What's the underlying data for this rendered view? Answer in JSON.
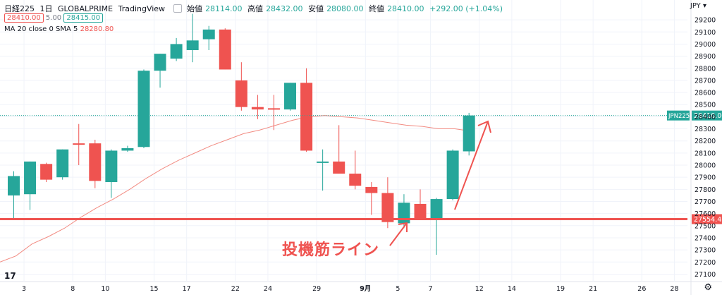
{
  "legend": {
    "symbol": "日経225",
    "interval": "1日",
    "broker": "GLOBALPRIME",
    "platform": "TradingView",
    "open_label": "始値",
    "open": "28114.00",
    "high_label": "高値",
    "high": "28432.00",
    "low_label": "安値",
    "low": "28080.00",
    "close_label": "終値",
    "close": "28410.00",
    "change": "+292.00 (+1.04%)",
    "bid": "28410.00",
    "spread": "5.00",
    "ask": "28415.00"
  },
  "indicator": {
    "label": "MA 20 close 0 SMA 5",
    "value": "28280.80"
  },
  "currency": "JPY",
  "tv_logo": "17",
  "annotation": "投機筋ライン",
  "colors": {
    "up": "#26a69a",
    "down": "#ef5350",
    "ma": "#f28b82",
    "support": "#ef5350",
    "current_line": "#26a69a"
  },
  "chart_data": {
    "type": "candlestick",
    "y_ticks": [
      27100,
      27200,
      27300,
      27400,
      27500,
      27600,
      27700,
      27800,
      27900,
      28000,
      28100,
      28200,
      28300,
      28400,
      28500,
      28600,
      28700,
      28800,
      28900,
      29000,
      29100,
      29200
    ],
    "x_ticks": [
      "3",
      "8",
      "10",
      "15",
      "17",
      "22",
      "24",
      "29",
      "9月",
      "5",
      "7",
      "12",
      "14",
      "19",
      "21",
      "26",
      "28"
    ],
    "candles": [
      {
        "o": 27750,
        "h": 27950,
        "l": 27550,
        "c": 27910
      },
      {
        "o": 27760,
        "h": 28030,
        "l": 27630,
        "c": 28030
      },
      {
        "o": 28010,
        "h": 28020,
        "l": 27860,
        "c": 27880
      },
      {
        "o": 27900,
        "h": 28130,
        "l": 27880,
        "c": 28130
      },
      {
        "o": 28180,
        "h": 28340,
        "l": 28000,
        "c": 28170
      },
      {
        "o": 28180,
        "h": 28210,
        "l": 27810,
        "c": 27870
      },
      {
        "o": 27860,
        "h": 28130,
        "l": 27730,
        "c": 28120
      },
      {
        "o": 28120,
        "h": 28160,
        "l": 28110,
        "c": 28140
      },
      {
        "o": 28150,
        "h": 28790,
        "l": 28140,
        "c": 28780
      },
      {
        "o": 28780,
        "h": 28920,
        "l": 28640,
        "c": 28920
      },
      {
        "o": 28880,
        "h": 29050,
        "l": 28860,
        "c": 29000
      },
      {
        "o": 28950,
        "h": 29250,
        "l": 28850,
        "c": 29030
      },
      {
        "o": 29040,
        "h": 29150,
        "l": 28950,
        "c": 29120
      },
      {
        "o": 29120,
        "h": 29130,
        "l": 28790,
        "c": 28790
      },
      {
        "o": 28700,
        "h": 28850,
        "l": 28450,
        "c": 28480
      },
      {
        "o": 28480,
        "h": 28580,
        "l": 28380,
        "c": 28460
      },
      {
        "o": 28470,
        "h": 28580,
        "l": 28290,
        "c": 28460
      },
      {
        "o": 28460,
        "h": 28680,
        "l": 28450,
        "c": 28680
      },
      {
        "o": 28680,
        "h": 28800,
        "l": 28110,
        "c": 28120
      },
      {
        "o": 28030,
        "h": 28130,
        "l": 27790,
        "c": 28030
      },
      {
        "o": 28030,
        "h": 28330,
        "l": 27930,
        "c": 27930
      },
      {
        "o": 27930,
        "h": 28120,
        "l": 27800,
        "c": 27830
      },
      {
        "o": 27820,
        "h": 27860,
        "l": 27590,
        "c": 27770
      },
      {
        "o": 27770,
        "h": 27900,
        "l": 27480,
        "c": 27530
      },
      {
        "o": 27520,
        "h": 27760,
        "l": 27480,
        "c": 27690
      },
      {
        "o": 27680,
        "h": 27800,
        "l": 27560,
        "c": 27560
      },
      {
        "o": 27560,
        "h": 27730,
        "l": 27260,
        "c": 27720
      },
      {
        "o": 27720,
        "h": 28130,
        "l": 27710,
        "c": 28120
      },
      {
        "o": 28114,
        "h": 28432,
        "l": 28080,
        "c": 28410
      }
    ],
    "ma": [
      27250,
      27350,
      27410,
      27480,
      27570,
      27650,
      27720,
      27800,
      27890,
      27970,
      28040,
      28100,
      28160,
      28210,
      28260,
      28290,
      28330,
      28370,
      28400,
      28410,
      28400,
      28390,
      28370,
      28350,
      28330,
      28320,
      28300,
      28300,
      28280.8
    ],
    "support_level": "27554.43",
    "current_price_label": "JPN225",
    "current_price": "28410.00"
  }
}
